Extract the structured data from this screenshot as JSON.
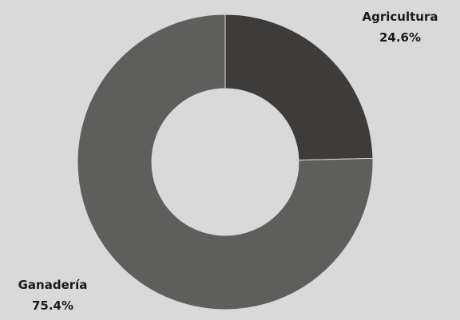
{
  "chart_data": {
    "type": "pie",
    "variant": "donut",
    "title": "",
    "categories": [
      "Agricultura",
      "Ganadería"
    ],
    "values": [
      24.6,
      75.4
    ],
    "value_labels": [
      "24.6%",
      "75.4%"
    ],
    "colors": [
      "#3d3c3a",
      "#5e5e5c"
    ],
    "background": "#d9d9d9",
    "legend": "none"
  }
}
